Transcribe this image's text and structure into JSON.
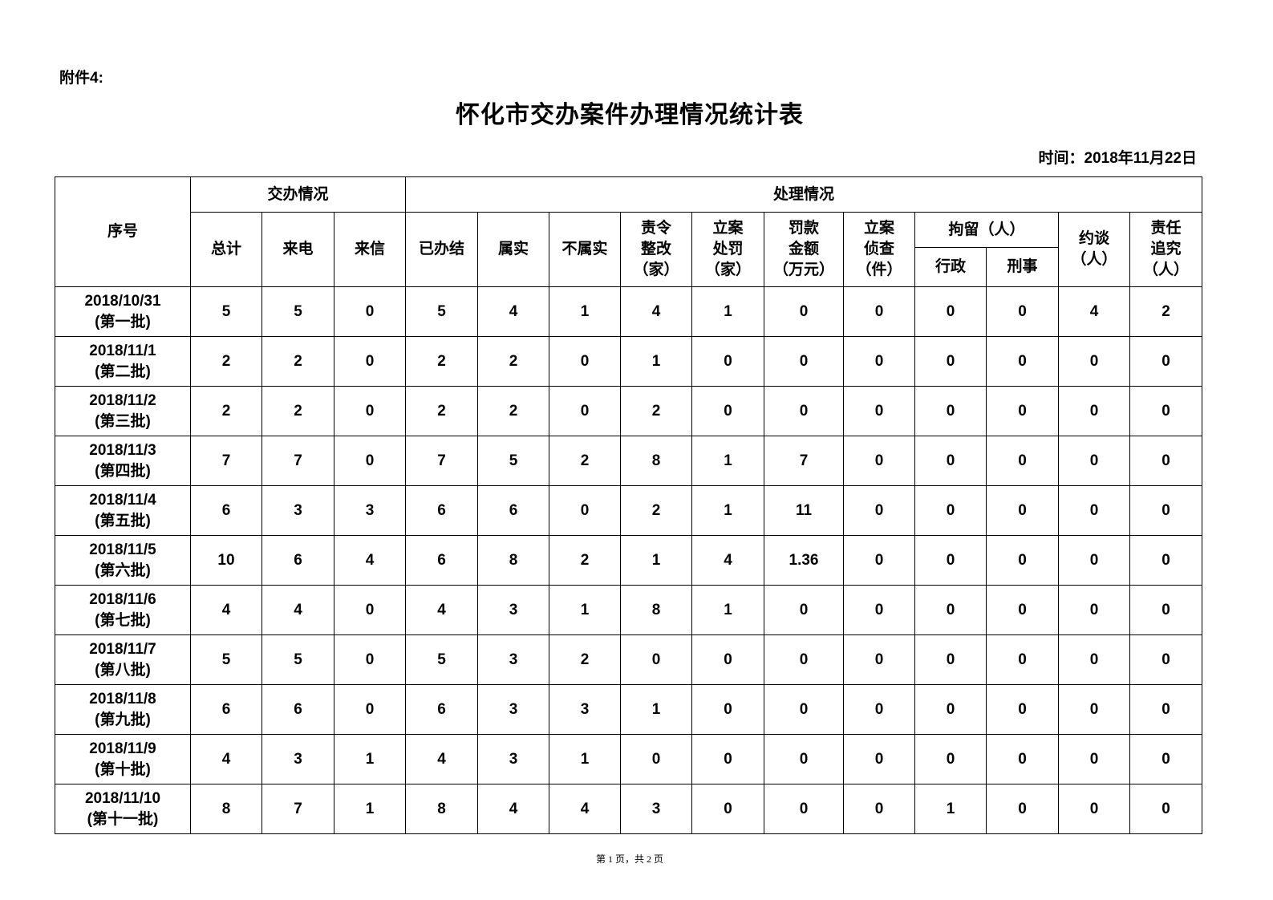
{
  "attachment_label": "附件4:",
  "title": "怀化市交办案件办理情况统计表",
  "date_line": "时间：2018年11月22日",
  "header": {
    "serial": "序号",
    "group_assigned": "交办情况",
    "group_handling": "处理情况",
    "total": "总计",
    "phone": "来电",
    "letter": "来信",
    "closed": "已办结",
    "verified": "属实",
    "not_verified": "不属实",
    "rectify": [
      "责令",
      "整改",
      "（家）"
    ],
    "penalty_case": [
      "立案",
      "处罚",
      "（家）"
    ],
    "fine": [
      "罚款",
      "金额",
      "（万元）"
    ],
    "investigation": [
      "立案",
      "侦查",
      "（件）"
    ],
    "detention": "拘留（人）",
    "admin": "行政",
    "criminal": "刑事",
    "interview": [
      "约谈",
      "（人）"
    ],
    "accountability": [
      "责任",
      "追究",
      "（人）"
    ]
  },
  "rows": [
    {
      "date": "2018/10/31",
      "batch": "(第一批)",
      "values": [
        "5",
        "5",
        "0",
        "5",
        "4",
        "1",
        "4",
        "1",
        "0",
        "0",
        "0",
        "0",
        "4",
        "2"
      ]
    },
    {
      "date": "2018/11/1",
      "batch": "(第二批)",
      "values": [
        "2",
        "2",
        "0",
        "2",
        "2",
        "0",
        "1",
        "0",
        "0",
        "0",
        "0",
        "0",
        "0",
        "0"
      ]
    },
    {
      "date": "2018/11/2",
      "batch": "(第三批)",
      "values": [
        "2",
        "2",
        "0",
        "2",
        "2",
        "0",
        "2",
        "0",
        "0",
        "0",
        "0",
        "0",
        "0",
        "0"
      ]
    },
    {
      "date": "2018/11/3",
      "batch": "(第四批)",
      "values": [
        "7",
        "7",
        "0",
        "7",
        "5",
        "2",
        "8",
        "1",
        "7",
        "0",
        "0",
        "0",
        "0",
        "0"
      ]
    },
    {
      "date": "2018/11/4",
      "batch": "(第五批)",
      "values": [
        "6",
        "3",
        "3",
        "6",
        "6",
        "0",
        "2",
        "1",
        "11",
        "0",
        "0",
        "0",
        "0",
        "0"
      ]
    },
    {
      "date": "2018/11/5",
      "batch": "(第六批)",
      "values": [
        "10",
        "6",
        "4",
        "6",
        "8",
        "2",
        "1",
        "4",
        "1.36",
        "0",
        "0",
        "0",
        "0",
        "0"
      ]
    },
    {
      "date": "2018/11/6",
      "batch": "(第七批)",
      "values": [
        "4",
        "4",
        "0",
        "4",
        "3",
        "1",
        "8",
        "1",
        "0",
        "0",
        "0",
        "0",
        "0",
        "0"
      ]
    },
    {
      "date": "2018/11/7",
      "batch": "(第八批)",
      "values": [
        "5",
        "5",
        "0",
        "5",
        "3",
        "2",
        "0",
        "0",
        "0",
        "0",
        "0",
        "0",
        "0",
        "0"
      ]
    },
    {
      "date": "2018/11/8",
      "batch": "(第九批)",
      "values": [
        "6",
        "6",
        "0",
        "6",
        "3",
        "3",
        "1",
        "0",
        "0",
        "0",
        "0",
        "0",
        "0",
        "0"
      ]
    },
    {
      "date": "2018/11/9",
      "batch": "(第十批)",
      "values": [
        "4",
        "3",
        "1",
        "4",
        "3",
        "1",
        "0",
        "0",
        "0",
        "0",
        "0",
        "0",
        "0",
        "0"
      ]
    },
    {
      "date": "2018/11/10",
      "batch": "(第十一批)",
      "values": [
        "8",
        "7",
        "1",
        "8",
        "4",
        "4",
        "3",
        "0",
        "0",
        "0",
        "1",
        "0",
        "0",
        "0"
      ]
    }
  ],
  "footer": "第 1 页，共 2 页"
}
